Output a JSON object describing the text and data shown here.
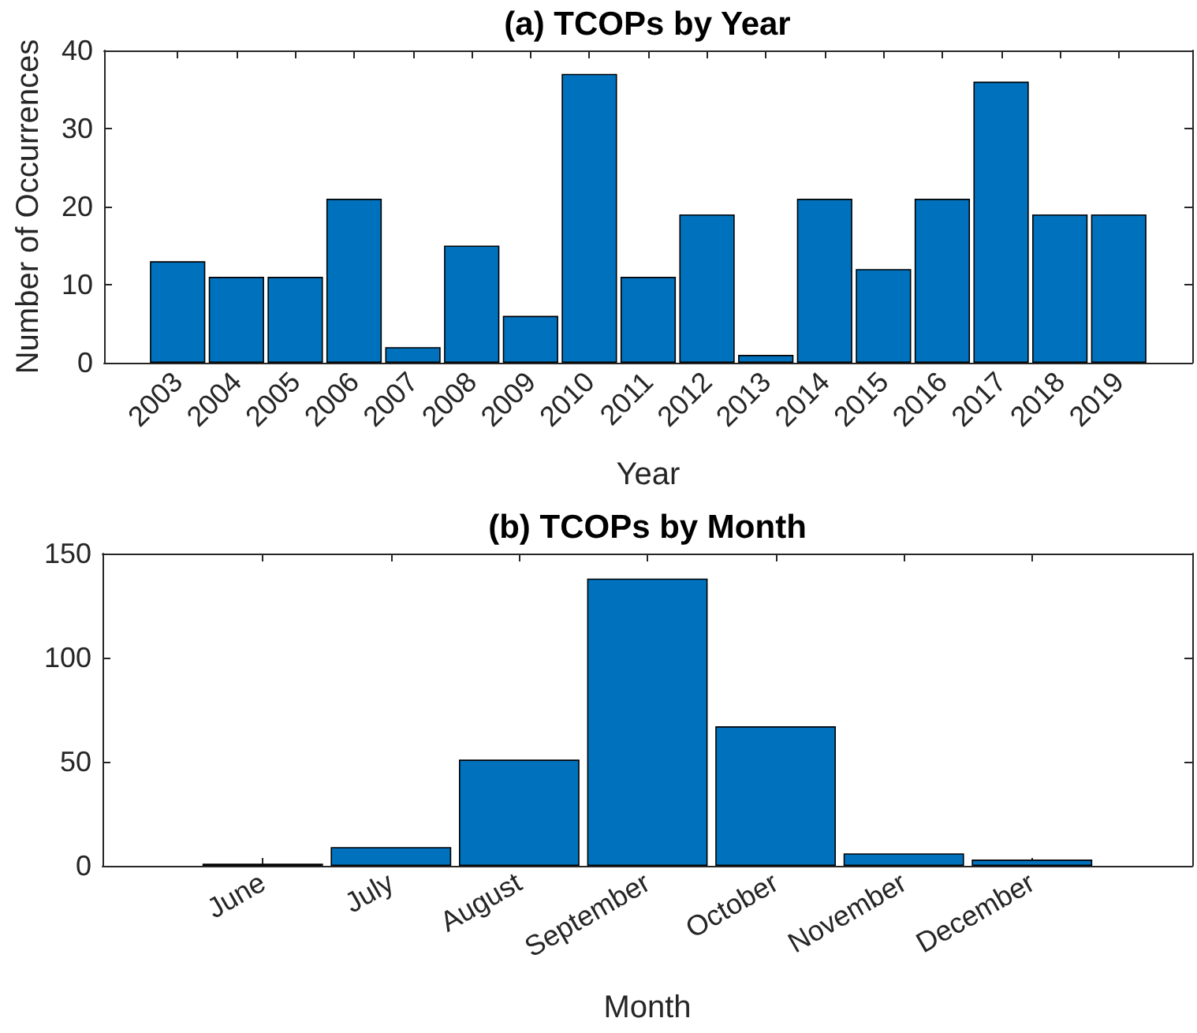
{
  "chart_data": [
    {
      "type": "bar",
      "title": "(a) TCOPs by Year",
      "xlabel": "Year",
      "ylabel": "Number of Occurrences",
      "categories": [
        "2003",
        "2004",
        "2005",
        "2006",
        "2007",
        "2008",
        "2009",
        "2010",
        "2011",
        "2012",
        "2013",
        "2014",
        "2015",
        "2016",
        "2017",
        "2018",
        "2019"
      ],
      "values": [
        13,
        11,
        11,
        21,
        2,
        15,
        6,
        37,
        11,
        19,
        1,
        21,
        12,
        21,
        36,
        19,
        19
      ],
      "color": "#0072bd",
      "ylim": [
        0,
        40
      ],
      "yticks": [
        0,
        10,
        20,
        30,
        40
      ]
    },
    {
      "type": "bar",
      "title": "(b) TCOPs by Month",
      "xlabel": "Month",
      "categories": [
        "June",
        "July",
        "August",
        "September",
        "October",
        "November",
        "December"
      ],
      "values": [
        1,
        9,
        51,
        138,
        67,
        6,
        3
      ],
      "color": "#0072bd",
      "ylim": [
        0,
        150
      ],
      "yticks": [
        0,
        50,
        100,
        150
      ]
    }
  ]
}
